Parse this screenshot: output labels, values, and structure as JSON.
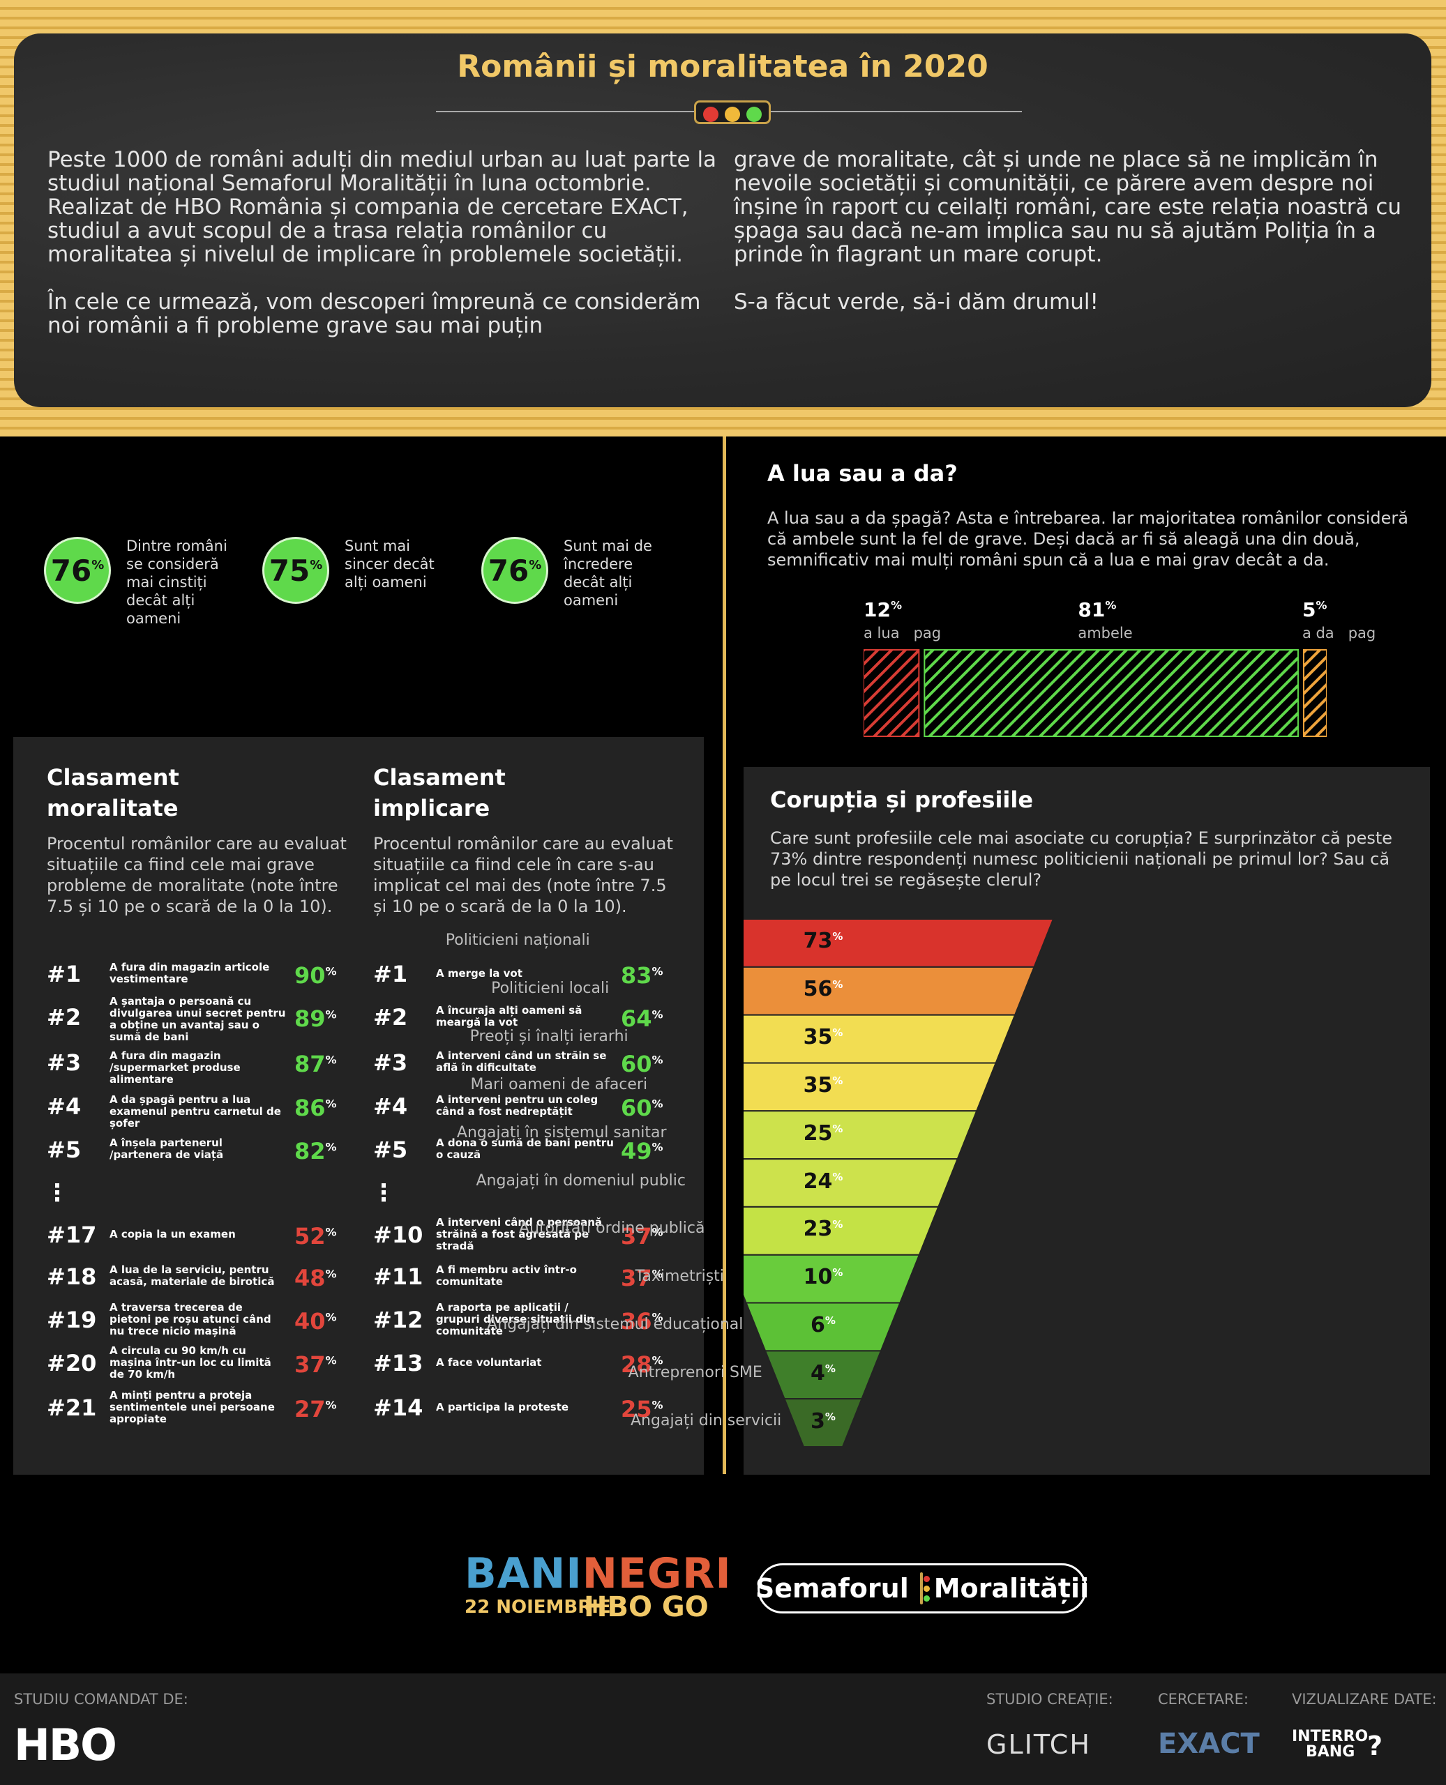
{
  "header": {
    "title": "Românii și moralitatea în 2020",
    "intro_col1_p1": "Peste 1000 de români adulți din mediul urban au luat parte la studiul național Semaforul Moralității în luna octombrie. Realizat de HBO România și compania de cercetare EXACT, studiul a avut scopul de a trasa relația românilor cu moralitatea și nivelul de implicare în problemele societății.",
    "intro_col1_p2": "În cele ce urmează, vom descoperi împreună ce considerăm noi românii a fi probleme grave sau mai puțin",
    "intro_col2_p1": "grave de moralitate, cât și unde ne place să ne implicăm în nevoile societății și comunității, ce părere avem despre noi înșine în raport cu ceilalți români, care este relația noastră cu șpaga sau dacă ne-am implica sau nu să ajutăm Poliția în a prinde în flagrant un mare corupt.",
    "intro_col2_p2": "S-a făcut verde, să-i dăm drumul!"
  },
  "stats": [
    {
      "value": "76",
      "unit": "%",
      "text": "Dintre români se consideră mai cinstiți decât alți oameni"
    },
    {
      "value": "75",
      "unit": "%",
      "text": "Sunt mai sincer decât alți oameni"
    },
    {
      "value": "76",
      "unit": "%",
      "text": "Sunt mai de încredere decât alți oameni"
    }
  ],
  "bribe": {
    "title": "A lua sau a da?",
    "desc": "A lua sau a da șpagă? Asta e întrebarea. Iar majoritatea românilor consideră că ambele sunt la fel de grave. Deși dacă ar fi să aleagă una din două, semnificativ mai mulți români spun că a lua e mai grav decât a da.",
    "unit": "%",
    "labels": [
      "a lua   pag",
      "ambele",
      "a da   pag"
    ]
  },
  "rank_moral": {
    "title_l1": "Clasament",
    "title_l2": "moralitate",
    "desc": "Procentul românilor care au evaluat situațiile ca fiind cele mai grave probleme de moralitate (note între 7.5 și 10 pe o scară de la 0 la 10).",
    "rows": [
      {
        "rank": "#1",
        "text": "A fura din magazin articole vestimentare",
        "value": "90",
        "color": "green"
      },
      {
        "rank": "#2",
        "text": "A șantaja o persoană cu divulgarea unui secret pentru a obține un avantaj sau o sumă de bani",
        "value": "89",
        "color": "green"
      },
      {
        "rank": "#3",
        "text": "A fura din magazin /supermarket produse alimentare",
        "value": "87",
        "color": "green"
      },
      {
        "rank": "#4",
        "text": "A da șpagă pentru a lua examenul pentru carnetul de șofer",
        "value": "86",
        "color": "green"
      },
      {
        "rank": "#5",
        "text": "A înșela partenerul /partenera de viață",
        "value": "82",
        "color": "green"
      },
      {
        "rank": "#17",
        "text": "A copia la un examen",
        "value": "52",
        "color": "red"
      },
      {
        "rank": "#18",
        "text": "A lua de la serviciu, pentru acasă, materiale de birotică",
        "value": "48",
        "color": "red"
      },
      {
        "rank": "#19",
        "text": "A traversa trecerea de pietoni pe roșu atunci când nu trece nicio mașină",
        "value": "40",
        "color": "red"
      },
      {
        "rank": "#20",
        "text": "A circula cu 90 km/h cu mașina într-un loc cu limită de 70 km/h",
        "value": "37",
        "color": "red"
      },
      {
        "rank": "#21",
        "text": "A minți pentru a proteja sentimentele unei persoane apropiate",
        "value": "27",
        "color": "red"
      }
    ]
  },
  "rank_implic": {
    "title_l1": "Clasament",
    "title_l2": "implicare",
    "desc": "Procentul românilor care au evaluat situațiile ca fiind cele în care s-au implicat cel mai des (note între 7.5 și 10 pe o scară de la 0 la 10).",
    "rows": [
      {
        "rank": "#1",
        "text": "A merge la vot",
        "value": "83",
        "color": "green"
      },
      {
        "rank": "#2",
        "text": "A încuraja alți oameni să meargă la vot",
        "value": "64",
        "color": "green"
      },
      {
        "rank": "#3",
        "text": "A interveni când un străin se află în dificultate",
        "value": "60",
        "color": "green"
      },
      {
        "rank": "#4",
        "text": "A interveni pentru un coleg când a fost nedreptățit",
        "value": "60",
        "color": "green"
      },
      {
        "rank": "#5",
        "text": "A dona o sumă de bani pentru o cauză",
        "value": "49",
        "color": "green"
      },
      {
        "rank": "#10",
        "text": "A interveni când o persoană străină a fost agresată pe stradă",
        "value": "37",
        "color": "red"
      },
      {
        "rank": "#11",
        "text": "A fi membru activ într-o comunitate",
        "value": "37",
        "color": "red"
      },
      {
        "rank": "#12",
        "text": "A raporta pe aplicații / grupuri diverse situații din comunitate",
        "value": "36",
        "color": "red"
      },
      {
        "rank": "#13",
        "text": "A face voluntariat",
        "value": "28",
        "color": "red"
      },
      {
        "rank": "#14",
        "text": "A participa la proteste",
        "value": "25",
        "color": "red"
      }
    ]
  },
  "corruption": {
    "title": "Corupția și profesiile",
    "desc": "Care sunt profesiile cele mai asociate cu corupția? E surprinzător că peste 73% dintre respondenți numesc politicienii naționali pe primul lor? Sau că pe locul trei se regăsește clerul?",
    "unit": "%"
  },
  "chart_data": [
    {
      "type": "bar",
      "categories": [
        "a lua pag",
        "ambele",
        "a da pag"
      ],
      "values": [
        12,
        81,
        5
      ],
      "colors": [
        "#d83c34",
        "#5fd94b",
        "#f0a43c"
      ]
    },
    {
      "type": "bar",
      "title": "Corupția și profesiile",
      "categories": [
        "Politicieni naționali",
        "Politicieni locali",
        "Preoți și înalți ierarhi",
        "Mari oameni de afaceri",
        "Angajați în sistemul sanitar",
        "Angajați în domeniul public",
        "Autorități ordine publică",
        "Taximetriști",
        "Angajați din sistemul educațional",
        "Antreprenori SME",
        "Angajați din servicii"
      ],
      "values": [
        73,
        56,
        35,
        35,
        25,
        24,
        23,
        10,
        6,
        4,
        3
      ],
      "colors": [
        "#d9332c",
        "#eb8f3a",
        "#f2dd52",
        "#f2dd52",
        "#cde24c",
        "#cde24c",
        "#c4e245",
        "#69cc3c",
        "#5cc136",
        "#3f7f2a",
        "#3a6a26"
      ]
    }
  ],
  "promo": {
    "bani": "BANI",
    "negri": "NEGRI",
    "date": "22 NOIEMBRIE",
    "hbogo": "HBO GO",
    "sem_l": "Semaforul",
    "sem_r": "Moralității"
  },
  "footer": {
    "commissioned_label": "STUDIU COMANDAT DE:",
    "hbo": "HBO",
    "studio_label": "STUDIO CREAȚIE:",
    "glitch": "GLITCH",
    "research_label": "CERCETARE:",
    "exact": "EXACT",
    "viz_label": "VIZUALIZARE DATE:",
    "interro": "INTERRO",
    "bang": "BANG"
  },
  "colors": {
    "gold": "#f1c867",
    "green": "#5fd94b",
    "red": "#e2463c",
    "orange": "#f0a43c"
  }
}
